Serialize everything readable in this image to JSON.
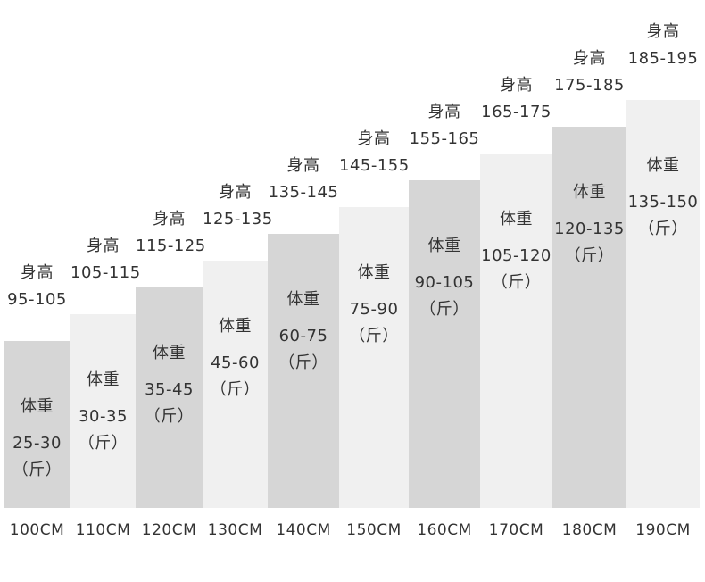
{
  "chart_data": {
    "type": "bar",
    "categories": [
      "100CM",
      "110CM",
      "120CM",
      "130CM",
      "140CM",
      "150CM",
      "160CM",
      "170CM",
      "180CM",
      "190CM"
    ],
    "height_label": "身高",
    "weight_label": "体重",
    "unit_label": "（斤）",
    "heights": [
      "95-105",
      "105-115",
      "115-125",
      "125-135",
      "135-145",
      "145-155",
      "155-165",
      "165-175",
      "175-185",
      "185-195"
    ],
    "weights": [
      "25-30",
      "30-35",
      "35-45",
      "45-60",
      "60-75",
      "75-90",
      "90-105",
      "105-120",
      "120-135",
      "135-150"
    ],
    "values": [
      1,
      2,
      3,
      4,
      5,
      6,
      7,
      8,
      9,
      10
    ],
    "ylim": [
      0,
      10
    ],
    "colors": {
      "dark": "#d6d6d6",
      "light": "#f0f0f0",
      "text": "#333333"
    }
  }
}
